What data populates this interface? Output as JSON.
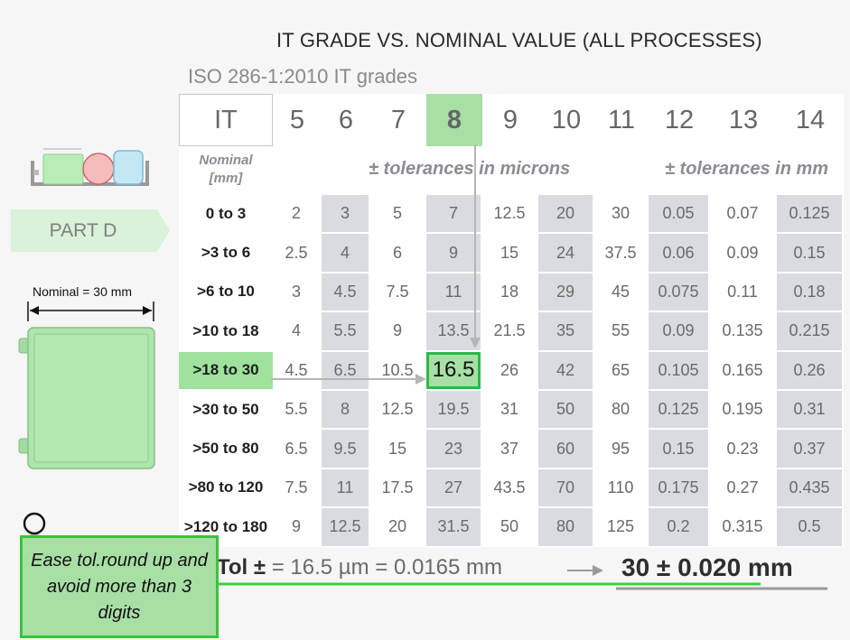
{
  "title": "IT GRADE VS. NOMINAL VALUE (ALL PROCESSES)",
  "subtitle": "ISO 286-1:2010  IT grades",
  "table": {
    "it_label": "IT",
    "grades": [
      "5",
      "6",
      "7",
      "8",
      "9",
      "10",
      "11",
      "12",
      "13",
      "14"
    ],
    "selected_grade": "8",
    "nominal_header": "Nominal [mm]",
    "microns_header": "± tolerances in microns",
    "mm_header": "± tolerances in mm",
    "rows": [
      {
        "label": "0 to 3",
        "values": [
          "2",
          "3",
          "5",
          "7",
          "12.5",
          "20",
          "30",
          "0.05",
          "0.07",
          "0.125"
        ]
      },
      {
        "label": ">3 to 6",
        "values": [
          "2.5",
          "4",
          "6",
          "9",
          "15",
          "24",
          "37.5",
          "0.06",
          "0.09",
          "0.15"
        ]
      },
      {
        "label": ">6 to 10",
        "values": [
          "3",
          "4.5",
          "7.5",
          "11",
          "18",
          "29",
          "45",
          "0.075",
          "0.11",
          "0.18"
        ]
      },
      {
        "label": ">10 to 18",
        "values": [
          "4",
          "5.5",
          "9",
          "13.5",
          "21.5",
          "35",
          "55",
          "0.09",
          "0.135",
          "0.215"
        ]
      },
      {
        "label": ">18 to 30",
        "values": [
          "4.5",
          "6.5",
          "10.5",
          "16.5",
          "26",
          "42",
          "65",
          "0.105",
          "0.165",
          "0.26"
        ]
      },
      {
        "label": ">30 to 50",
        "values": [
          "5.5",
          "8",
          "12.5",
          "19.5",
          "31",
          "50",
          "80",
          "0.125",
          "0.195",
          "0.31"
        ]
      },
      {
        "label": ">50 to 80",
        "values": [
          "6.5",
          "9.5",
          "15",
          "23",
          "37",
          "60",
          "95",
          "0.15",
          "0.23",
          "0.37"
        ]
      },
      {
        "label": ">80 to 120",
        "values": [
          "7.5",
          "11",
          "17.5",
          "27",
          "43.5",
          "70",
          "110",
          "0.175",
          "0.27",
          "0.435"
        ]
      },
      {
        "label": ">120 to 180",
        "values": [
          "9",
          "12.5",
          "20",
          "31.5",
          "50",
          "80",
          "125",
          "0.2",
          "0.315",
          "0.5"
        ]
      }
    ],
    "selected_row": ">18 to 30"
  },
  "part_label": "PART D",
  "nominal_dimension": "Nominal = 30 mm",
  "tol_prefix": "Tol ±",
  "tol_rest": " = 16.5 µm  =  0.0165 mm",
  "result": "30 ± 0.020 mm",
  "tip": "Ease tol.round up and avoid more than 3 digits",
  "colors": {
    "highlight": "#a8dfa5",
    "accent_green": "#3ac43a",
    "alt_column": "#d9dbe0",
    "part_fill": "#ace6aa"
  },
  "icons": [
    "parts-tray-icon",
    "part-box-icon",
    "lightbulb-icon",
    "arrow-right-icon"
  ]
}
